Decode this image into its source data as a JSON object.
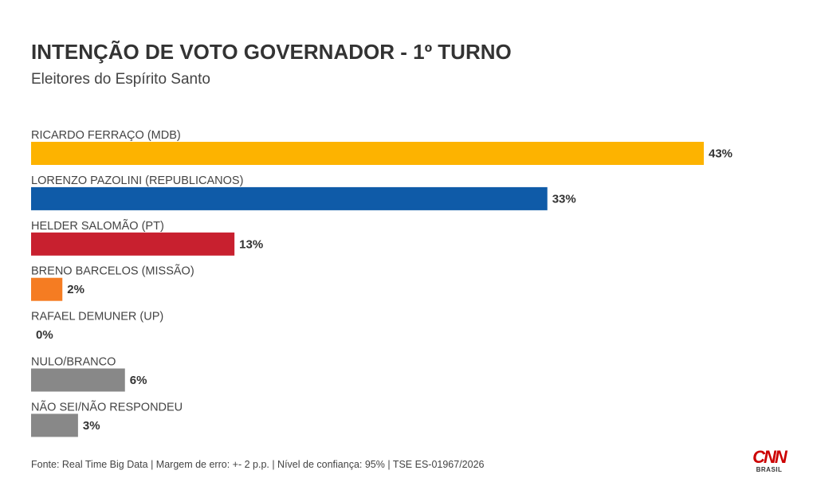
{
  "header": {
    "title": "INTENÇÃO DE VOTO GOVERNADOR - 1º TURNO",
    "subtitle": "Eleitores do Espírito Santo"
  },
  "chart_data": {
    "type": "bar",
    "orientation": "horizontal",
    "title": "INTENÇÃO DE VOTO GOVERNADOR - 1º TURNO",
    "subtitle": "Eleitores do Espírito Santo",
    "xlabel": "",
    "ylabel": "",
    "categories": [
      "RICARDO FERRAÇO (MDB)",
      "LORENZO PAZOLINI (REPUBLICANOS)",
      "HELDER SALOMÃO (PT)",
      "BRENO BARCELOS (MISSÃO)",
      "RAFAEL DEMUNER (UP)",
      "NULO/BRANCO",
      "NÃO SEI/NÃO RESPONDEU"
    ],
    "values": [
      43,
      33,
      13,
      2,
      0,
      6,
      3
    ],
    "value_labels": [
      "43%",
      "33%",
      "13%",
      "2%",
      "0%",
      "6%",
      "3%"
    ],
    "colors": [
      "#FDB300",
      "#0F5BA8",
      "#C8202F",
      "#F57C22",
      "#888888",
      "#888888",
      "#888888"
    ],
    "xlim": [
      0,
      43
    ],
    "grid": false,
    "legend": "none"
  },
  "footer": {
    "source": "Fonte: Real Time Big Data | Margem de erro: +- 2 p.p. | Nível de confiança: 95% | TSE ES-01967/2026"
  },
  "logo": {
    "brand": "CNN",
    "sub": "BRASIL"
  }
}
